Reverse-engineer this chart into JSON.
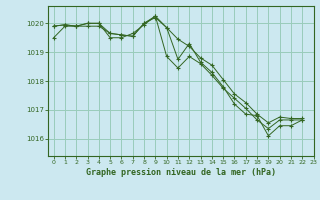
{
  "title": "Graphe pression niveau de la mer (hPa)",
  "background_color": "#cce8f0",
  "grid_color": "#99ccbb",
  "line_color": "#336622",
  "xlim": [
    -0.5,
    23
  ],
  "ylim": [
    1015.4,
    1020.6
  ],
  "yticks": [
    1016,
    1017,
    1018,
    1019,
    1020
  ],
  "xticks": [
    0,
    1,
    2,
    3,
    4,
    5,
    6,
    7,
    8,
    9,
    10,
    11,
    12,
    13,
    14,
    15,
    16,
    17,
    18,
    19,
    20,
    21,
    22,
    23
  ],
  "series": [
    [
      1019.5,
      1019.9,
      1019.9,
      1019.9,
      1019.9,
      1019.65,
      1019.6,
      1019.55,
      1020.0,
      1020.2,
      1019.85,
      1019.45,
      1019.2,
      1018.8,
      1018.55,
      1018.05,
      1017.55,
      1017.25,
      1016.85,
      1016.55,
      1016.75,
      1016.7,
      1016.7
    ],
    [
      1019.9,
      1019.95,
      1019.9,
      1020.0,
      1020.0,
      1019.65,
      1019.6,
      1019.55,
      1020.0,
      1020.25,
      1019.85,
      1018.75,
      1019.3,
      1018.65,
      1018.3,
      1017.8,
      1017.2,
      1016.85,
      1016.8,
      1016.1,
      1016.45,
      1016.45,
      1016.65
    ],
    [
      1019.9,
      1019.95,
      1019.9,
      1020.0,
      1020.0,
      1019.5,
      1019.5,
      1019.65,
      1019.95,
      1020.25,
      1018.85,
      1018.45,
      1018.85,
      1018.6,
      1018.2,
      1017.75,
      1017.4,
      1017.05,
      1016.65,
      1016.35,
      1016.65,
      1016.65,
      1016.65
    ]
  ]
}
